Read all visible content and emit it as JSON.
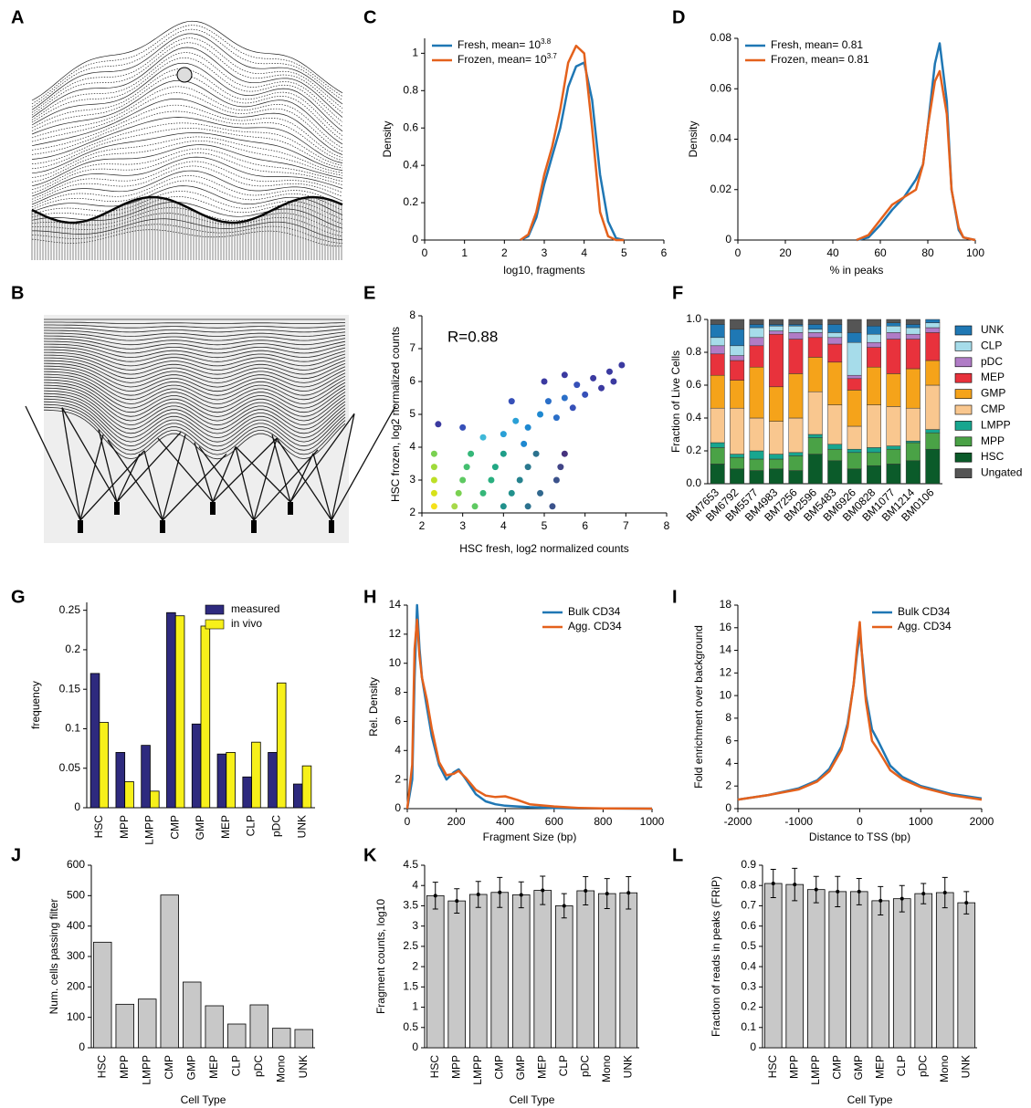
{
  "chart_data": [
    {
      "type": "image",
      "label": "A"
    },
    {
      "type": "image",
      "label": "B"
    },
    {
      "type": "line",
      "label": "C",
      "xlabel": "log10, fragments",
      "ylabel": "Density",
      "x": [
        2.4,
        2.6,
        2.8,
        3.0,
        3.2,
        3.4,
        3.6,
        3.8,
        4.0,
        4.2,
        4.4,
        4.6,
        4.8,
        5.0
      ],
      "series": [
        {
          "name": "Fresh, mean= 10",
          "name_sup": "3.8",
          "color": "#1f77b4",
          "values": [
            0,
            0.02,
            0.12,
            0.3,
            0.45,
            0.6,
            0.82,
            0.93,
            0.95,
            0.75,
            0.35,
            0.1,
            0.01,
            0
          ]
        },
        {
          "name": "Frozen, mean= 10",
          "name_sup": "3.7",
          "color": "#e4611c",
          "values": [
            0,
            0.03,
            0.15,
            0.35,
            0.5,
            0.7,
            0.95,
            1.04,
            1.0,
            0.6,
            0.15,
            0.02,
            0,
            0
          ]
        }
      ],
      "xlim": [
        0,
        6
      ],
      "xticks": [
        0,
        1,
        2,
        3,
        4,
        5,
        6
      ],
      "ylim": [
        0,
        1.08
      ],
      "yticks": [
        0,
        0.2,
        0.4,
        0.6,
        0.8,
        1
      ],
      "legend": "upper left"
    },
    {
      "type": "line",
      "label": "D",
      "xlabel": "% in peaks",
      "ylabel": "Density",
      "x": [
        50,
        55,
        60,
        65,
        70,
        75,
        78,
        80,
        83,
        85,
        88,
        90,
        93,
        95,
        100
      ],
      "series": [
        {
          "name": "Fresh, mean= 0.81",
          "color": "#1f77b4",
          "values": [
            0,
            0.001,
            0.006,
            0.012,
            0.017,
            0.024,
            0.03,
            0.045,
            0.07,
            0.078,
            0.055,
            0.02,
            0.004,
            0.001,
            0
          ]
        },
        {
          "name": "Frozen, mean= 0.81",
          "color": "#e4611c",
          "values": [
            0,
            0.002,
            0.008,
            0.014,
            0.017,
            0.02,
            0.03,
            0.045,
            0.063,
            0.067,
            0.05,
            0.02,
            0.005,
            0.001,
            0
          ]
        }
      ],
      "xlim": [
        0,
        100
      ],
      "xticks": [
        0,
        20,
        40,
        60,
        80,
        100
      ],
      "ylim": [
        0,
        0.08
      ],
      "yticks": [
        0,
        0.02,
        0.04,
        0.06,
        0.08
      ],
      "legend": "upper left"
    },
    {
      "type": "scatter",
      "label": "E",
      "xlabel": "HSC fresh, log2 normalized counts",
      "ylabel": "HSC frozen, log2 normalized counts",
      "annotation": "R=0.88",
      "x": [
        2.3,
        2.8,
        3.3,
        4.0,
        4.6,
        5.2,
        2.3,
        2.9,
        3.5,
        4.2,
        4.9,
        2.3,
        3.0,
        3.7,
        4.4,
        5.3,
        2.3,
        3.1,
        3.8,
        4.6,
        5.4,
        2.3,
        3.2,
        4.0,
        4.8,
        5.5,
        3.5,
        4.0,
        4.3,
        4.6,
        4.9,
        5.1,
        5.3,
        5.5,
        5.7,
        5.8,
        6.0,
        6.2,
        6.4,
        6.6,
        6.7,
        3.0,
        2.4,
        4.2,
        5.0,
        5.5,
        6.9,
        4.5
      ],
      "values": [
        2.2,
        2.2,
        2.2,
        2.2,
        2.2,
        2.2,
        2.6,
        2.6,
        2.6,
        2.6,
        2.6,
        3.0,
        3.0,
        3.0,
        3.0,
        3.0,
        3.4,
        3.4,
        3.4,
        3.4,
        3.4,
        3.8,
        3.8,
        3.8,
        3.8,
        3.8,
        4.3,
        4.4,
        4.8,
        4.6,
        5.0,
        5.4,
        4.9,
        5.5,
        5.2,
        5.9,
        5.6,
        6.1,
        5.8,
        6.3,
        6.0,
        4.6,
        4.7,
        5.4,
        6.0,
        6.2,
        6.5,
        4.1
      ],
      "colors": [
        "#f5e11b",
        "#a8d94a",
        "#5ec962",
        "#21918c",
        "#2c728e",
        "#3b528b",
        "#d7e21a",
        "#7ad151",
        "#35b779",
        "#21918c",
        "#31688e",
        "#bddf26",
        "#5ec962",
        "#29af7f",
        "#26828e",
        "#3b528b",
        "#9fda3a",
        "#44bf70",
        "#22a884",
        "#2a788e",
        "#414487",
        "#7ad151",
        "#35b779",
        "#1f9e89",
        "#2c728e",
        "#46327e",
        "#3fb8d8",
        "#2aa0d6",
        "#2aa0d6",
        "#1e88d0",
        "#1e88d0",
        "#2b6fc8",
        "#2b6fc8",
        "#2b6fc8",
        "#3650b8",
        "#3650b8",
        "#3650b8",
        "#3b3aa0",
        "#3b3aa0",
        "#3b3aa0",
        "#3b3aa0",
        "#3650b8",
        "#3b3aa0",
        "#3650b8",
        "#3b3aa0",
        "#3b3aa0",
        "#3b3aa0",
        "#1e88d0"
      ],
      "xlim": [
        2,
        8
      ],
      "xticks": [
        2,
        3,
        4,
        5,
        6,
        7,
        8
      ],
      "ylim": [
        2,
        8
      ],
      "yticks": [
        2,
        3,
        4,
        5,
        6,
        7,
        8
      ]
    },
    {
      "type": "bar",
      "stacked": true,
      "label": "F",
      "ylabel": "Fraction of Live Cells",
      "xtick_rotation": 45,
      "categories": [
        "BM7653",
        "BM6792",
        "BM5577",
        "BM4983",
        "BM7256",
        "BM2596",
        "BM5483",
        "BM6926",
        "BM0828",
        "BM1077",
        "BM1214",
        "BM0106"
      ],
      "series": [
        {
          "name": "HSC",
          "color": "#0b5b2a",
          "values": [
            0.12,
            0.09,
            0.08,
            0.09,
            0.08,
            0.18,
            0.14,
            0.09,
            0.11,
            0.12,
            0.14,
            0.21
          ]
        },
        {
          "name": "MPP",
          "color": "#4aa246",
          "values": [
            0.1,
            0.07,
            0.07,
            0.06,
            0.09,
            0.1,
            0.07,
            0.1,
            0.08,
            0.09,
            0.11,
            0.1
          ]
        },
        {
          "name": "LMPP",
          "color": "#18a68f",
          "values": [
            0.03,
            0.02,
            0.05,
            0.03,
            0.02,
            0.02,
            0.03,
            0.02,
            0.03,
            0.02,
            0.01,
            0.02
          ]
        },
        {
          "name": "CMP",
          "color": "#f9c78f",
          "values": [
            0.21,
            0.28,
            0.2,
            0.2,
            0.21,
            0.26,
            0.24,
            0.14,
            0.26,
            0.24,
            0.2,
            0.27
          ]
        },
        {
          "name": "GMP",
          "color": "#f5a31a",
          "values": [
            0.2,
            0.17,
            0.31,
            0.21,
            0.27,
            0.21,
            0.26,
            0.22,
            0.23,
            0.2,
            0.24,
            0.15
          ]
        },
        {
          "name": "MEP",
          "color": "#e8323c",
          "values": [
            0.13,
            0.12,
            0.13,
            0.32,
            0.21,
            0.12,
            0.11,
            0.07,
            0.12,
            0.21,
            0.18,
            0.17
          ]
        },
        {
          "name": "pDC",
          "color": "#b07cc6",
          "values": [
            0.05,
            0.03,
            0.05,
            0.02,
            0.04,
            0.03,
            0.04,
            0.02,
            0.03,
            0.04,
            0.03,
            0.03
          ]
        },
        {
          "name": "CLP",
          "color": "#a6dcea",
          "values": [
            0.05,
            0.06,
            0.06,
            0.03,
            0.04,
            0.02,
            0.03,
            0.2,
            0.05,
            0.04,
            0.04,
            0.03
          ]
        },
        {
          "name": "UNK",
          "color": "#1f78b4",
          "values": [
            0.08,
            0.1,
            0.02,
            0.01,
            0.01,
            0.03,
            0.05,
            0.06,
            0.05,
            0.02,
            0.02,
            0.02
          ]
        },
        {
          "name": "Ungated",
          "color": "#555555",
          "values": [
            0.03,
            0.06,
            0.03,
            0.03,
            0.03,
            0.03,
            0.03,
            0.08,
            0.04,
            0.02,
            0.03,
            0.0
          ]
        }
      ],
      "ylim": [
        0,
        1
      ],
      "yticks": [
        {
          "value": 0,
          "label": "0.0"
        },
        0.2,
        0.4,
        0.6,
        0.8,
        {
          "value": 1,
          "label": "1.0"
        }
      ],
      "legend": "right",
      "legend_order": [
        8,
        7,
        6,
        5,
        4,
        3,
        2,
        1,
        0,
        9
      ]
    },
    {
      "type": "bar",
      "label": "G",
      "ylabel": "frequency",
      "xtick_rotation": 90,
      "categories": [
        "HSC",
        "MPP",
        "LMPP",
        "CMP",
        "GMP",
        "MEP",
        "CLP",
        "pDC",
        "UNK"
      ],
      "series": [
        {
          "name": "measured",
          "color": "#2e2a7e",
          "values": [
            0.17,
            0.07,
            0.079,
            0.247,
            0.106,
            0.068,
            0.039,
            0.07,
            0.03
          ]
        },
        {
          "name": "in vivo",
          "color": "#f7f01a",
          "values": [
            0.108,
            0.033,
            0.021,
            0.243,
            0.23,
            0.07,
            0.083,
            0.158,
            0.053
          ]
        }
      ],
      "ylim": [
        0,
        0.26
      ],
      "yticks": [
        0,
        0.05,
        0.1,
        0.15,
        0.2,
        0.25
      ],
      "legend": "upper right"
    },
    {
      "type": "line",
      "label": "H",
      "xlabel": "Fragment Size (bp)",
      "ylabel": "Rel. Density",
      "x": [
        0,
        20,
        30,
        40,
        50,
        60,
        80,
        100,
        130,
        160,
        190,
        210,
        240,
        280,
        320,
        360,
        400,
        450,
        500,
        600,
        700,
        800,
        1000
      ],
      "series": [
        {
          "name": "Bulk CD34",
          "color": "#1f77b4",
          "values": [
            0,
            2,
            9,
            14,
            11,
            9,
            7,
            5,
            3,
            2,
            2.5,
            2.7,
            2,
            1,
            0.5,
            0.3,
            0.2,
            0.15,
            0.1,
            0.05,
            0.02,
            0.01,
            0
          ]
        },
        {
          "name": "Agg. CD34",
          "color": "#e4611c",
          "values": [
            0,
            3,
            11,
            13,
            10.5,
            9,
            7.5,
            5.5,
            3.2,
            2.3,
            2.4,
            2.6,
            2.1,
            1.3,
            0.9,
            0.8,
            0.85,
            0.6,
            0.3,
            0.15,
            0.05,
            0.02,
            0
          ]
        }
      ],
      "xlim": [
        0,
        1000
      ],
      "xticks": [
        0,
        200,
        400,
        600,
        800,
        1000
      ],
      "ylim": [
        0,
        14
      ],
      "yticks": [
        0,
        2,
        4,
        6,
        8,
        10,
        12,
        14
      ],
      "legend": "upper right"
    },
    {
      "type": "line",
      "label": "I",
      "xlabel": "Distance to TSS (bp)",
      "ylabel": "Fold enrichment over background",
      "x": [
        -2000,
        -1500,
        -1000,
        -700,
        -500,
        -300,
        -200,
        -100,
        -50,
        0,
        50,
        100,
        200,
        300,
        500,
        700,
        1000,
        1500,
        2000
      ],
      "series": [
        {
          "name": "Bulk CD34",
          "color": "#1f77b4",
          "values": [
            0.8,
            1.2,
            1.8,
            2.5,
            3.5,
            5.5,
            7.5,
            11,
            13.5,
            15.5,
            13,
            10,
            7,
            6,
            3.8,
            2.8,
            2,
            1.3,
            0.9
          ]
        },
        {
          "name": "Agg. CD34",
          "color": "#e4611c",
          "values": [
            0.8,
            1.2,
            1.7,
            2.4,
            3.3,
            5.2,
            7.2,
            11,
            14,
            16.5,
            12.5,
            9.5,
            6,
            5.2,
            3.4,
            2.6,
            1.9,
            1.2,
            0.8
          ]
        }
      ],
      "xlim": [
        -2000,
        2000
      ],
      "xticks": [
        -2000,
        -1000,
        0,
        1000,
        2000
      ],
      "ylim": [
        0,
        18
      ],
      "yticks": [
        0,
        2,
        4,
        6,
        8,
        10,
        12,
        14,
        16,
        18
      ],
      "legend": "upper right"
    },
    {
      "type": "bar",
      "label": "J",
      "xlabel": "Cell Type",
      "ylabel": "Num. cells passing filter",
      "xtick_rotation": 90,
      "color": "#c8c8c8",
      "categories": [
        "HSC",
        "MPP",
        "LMPP",
        "CMP",
        "GMP",
        "MEP",
        "CLP",
        "pDC",
        "Mono",
        "UNK"
      ],
      "values": [
        347,
        143,
        160,
        502,
        216,
        138,
        78,
        141,
        64,
        60
      ],
      "ylim": [
        0,
        600
      ],
      "yticks": [
        0,
        100,
        200,
        300,
        400,
        500,
        600
      ]
    },
    {
      "type": "bar",
      "label": "K",
      "xlabel": "Cell Type",
      "ylabel": "Fragment counts, log10",
      "xtick_rotation": 90,
      "color": "#c8c8c8",
      "categories": [
        "HSC",
        "MPP",
        "LMPP",
        "CMP",
        "GMP",
        "MEP",
        "CLP",
        "pDC",
        "Mono",
        "UNK"
      ],
      "values": [
        3.75,
        3.62,
        3.78,
        3.83,
        3.77,
        3.88,
        3.5,
        3.87,
        3.8,
        3.82
      ],
      "errors": [
        0.33,
        0.3,
        0.32,
        0.37,
        0.32,
        0.35,
        0.3,
        0.35,
        0.37,
        0.4
      ],
      "ylim": [
        0,
        4.5
      ],
      "yticks": [
        0,
        0.5,
        1,
        1.5,
        2,
        2.5,
        3,
        3.5,
        4,
        4.5
      ]
    },
    {
      "type": "bar",
      "label": "L",
      "xlabel": "Cell Type",
      "ylabel": "Fraction of reads in peaks (FRiP)",
      "xtick_rotation": 90,
      "color": "#c8c8c8",
      "categories": [
        "HSC",
        "MPP",
        "LMPP",
        "CMP",
        "GMP",
        "MEP",
        "CLP",
        "pDC",
        "Mono",
        "UNK"
      ],
      "values": [
        0.81,
        0.805,
        0.78,
        0.77,
        0.77,
        0.725,
        0.735,
        0.76,
        0.765,
        0.715
      ],
      "errors": [
        0.07,
        0.08,
        0.065,
        0.075,
        0.065,
        0.07,
        0.065,
        0.05,
        0.075,
        0.055
      ],
      "ylim": [
        0,
        0.9
      ],
      "yticks": [
        0,
        0.1,
        0.2,
        0.3,
        0.4,
        0.5,
        0.6,
        0.7,
        0.8,
        0.9
      ]
    }
  ]
}
